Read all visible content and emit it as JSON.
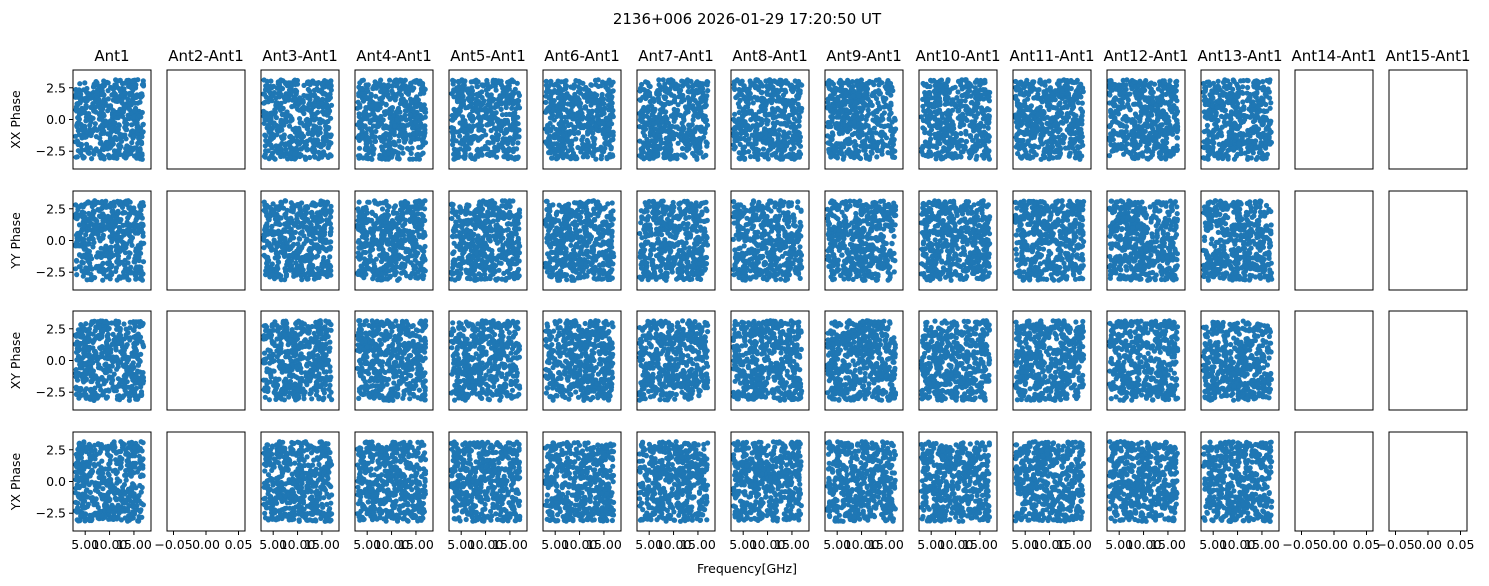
{
  "chart_data": {
    "type": "scatter",
    "title": "2136+006 2026-01-29 17:20:50 UT",
    "xlabel": "Frequency[GHz]",
    "columns": [
      "Ant1",
      "Ant2-Ant1",
      "Ant3-Ant1",
      "Ant4-Ant1",
      "Ant5-Ant1",
      "Ant6-Ant1",
      "Ant7-Ant1",
      "Ant8-Ant1",
      "Ant9-Ant1",
      "Ant10-Ant1",
      "Ant11-Ant1",
      "Ant12-Ant1",
      "Ant13-Ant1",
      "Ant14-Ant1",
      "Ant15-Ant1"
    ],
    "rows": [
      "XX Phase",
      "YY Phase",
      "XY Phase",
      "YX Phase"
    ],
    "marker_color": "#1f77b4",
    "ylim": [
      -3.9,
      3.9
    ],
    "y_ticks": [
      -2.5,
      0.0,
      2.5
    ],
    "y_tick_labels": [
      "−2.5",
      "0.0",
      "2.5"
    ],
    "x_ticks_data_panels": [
      5.0,
      10.0,
      15.0
    ],
    "x_tick_labels_data_panels": [
      "5.00",
      "10.00",
      "15.00"
    ],
    "x_ticks_empty_panels": [
      -0.05,
      0.0,
      0.05
    ],
    "x_tick_labels_empty_panels": [
      "−0.05",
      "0.00",
      "0.05"
    ],
    "xlim_data_panels": [
      2.5,
      18.5
    ],
    "xlim_empty_panels": [
      -0.06,
      0.06
    ],
    "empty_columns": [
      "Ant2-Ant1",
      "Ant14-Ant1",
      "Ant15-Ant1"
    ],
    "approx_points_per_panel": 500,
    "phase_range": [
      -3.14,
      3.14
    ],
    "grid": false
  }
}
